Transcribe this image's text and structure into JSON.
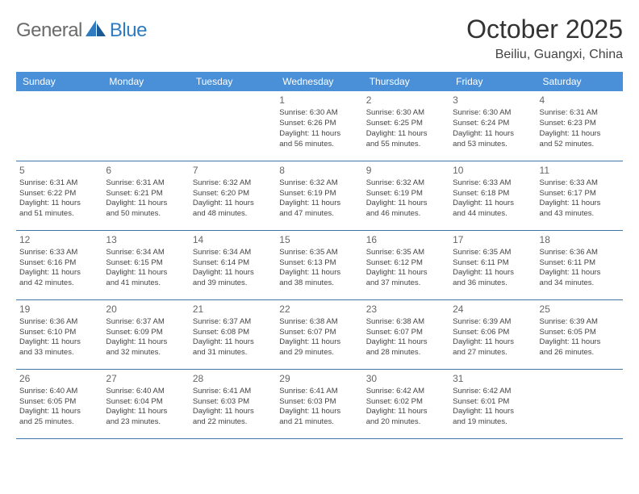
{
  "logo": {
    "word1": "General",
    "word2": "Blue"
  },
  "title": "October 2025",
  "location": "Beiliu, Guangxi, China",
  "colors": {
    "header_bg": "#4a90d9",
    "header_text": "#ffffff",
    "border": "#3f76a8",
    "logo_gray": "#6b6b6b",
    "logo_blue": "#2f7bbf"
  },
  "fonts": {
    "title_size": 32,
    "location_size": 16,
    "th_size": 12,
    "cell_size": 9.5,
    "daynum_size": 12
  },
  "dayHeaders": [
    "Sunday",
    "Monday",
    "Tuesday",
    "Wednesday",
    "Thursday",
    "Friday",
    "Saturday"
  ],
  "weeks": [
    [
      null,
      null,
      null,
      {
        "n": "1",
        "sr": "Sunrise: 6:30 AM",
        "ss": "Sunset: 6:26 PM",
        "d1": "Daylight: 11 hours",
        "d2": "and 56 minutes."
      },
      {
        "n": "2",
        "sr": "Sunrise: 6:30 AM",
        "ss": "Sunset: 6:25 PM",
        "d1": "Daylight: 11 hours",
        "d2": "and 55 minutes."
      },
      {
        "n": "3",
        "sr": "Sunrise: 6:30 AM",
        "ss": "Sunset: 6:24 PM",
        "d1": "Daylight: 11 hours",
        "d2": "and 53 minutes."
      },
      {
        "n": "4",
        "sr": "Sunrise: 6:31 AM",
        "ss": "Sunset: 6:23 PM",
        "d1": "Daylight: 11 hours",
        "d2": "and 52 minutes."
      }
    ],
    [
      {
        "n": "5",
        "sr": "Sunrise: 6:31 AM",
        "ss": "Sunset: 6:22 PM",
        "d1": "Daylight: 11 hours",
        "d2": "and 51 minutes."
      },
      {
        "n": "6",
        "sr": "Sunrise: 6:31 AM",
        "ss": "Sunset: 6:21 PM",
        "d1": "Daylight: 11 hours",
        "d2": "and 50 minutes."
      },
      {
        "n": "7",
        "sr": "Sunrise: 6:32 AM",
        "ss": "Sunset: 6:20 PM",
        "d1": "Daylight: 11 hours",
        "d2": "and 48 minutes."
      },
      {
        "n": "8",
        "sr": "Sunrise: 6:32 AM",
        "ss": "Sunset: 6:19 PM",
        "d1": "Daylight: 11 hours",
        "d2": "and 47 minutes."
      },
      {
        "n": "9",
        "sr": "Sunrise: 6:32 AM",
        "ss": "Sunset: 6:19 PM",
        "d1": "Daylight: 11 hours",
        "d2": "and 46 minutes."
      },
      {
        "n": "10",
        "sr": "Sunrise: 6:33 AM",
        "ss": "Sunset: 6:18 PM",
        "d1": "Daylight: 11 hours",
        "d2": "and 44 minutes."
      },
      {
        "n": "11",
        "sr": "Sunrise: 6:33 AM",
        "ss": "Sunset: 6:17 PM",
        "d1": "Daylight: 11 hours",
        "d2": "and 43 minutes."
      }
    ],
    [
      {
        "n": "12",
        "sr": "Sunrise: 6:33 AM",
        "ss": "Sunset: 6:16 PM",
        "d1": "Daylight: 11 hours",
        "d2": "and 42 minutes."
      },
      {
        "n": "13",
        "sr": "Sunrise: 6:34 AM",
        "ss": "Sunset: 6:15 PM",
        "d1": "Daylight: 11 hours",
        "d2": "and 41 minutes."
      },
      {
        "n": "14",
        "sr": "Sunrise: 6:34 AM",
        "ss": "Sunset: 6:14 PM",
        "d1": "Daylight: 11 hours",
        "d2": "and 39 minutes."
      },
      {
        "n": "15",
        "sr": "Sunrise: 6:35 AM",
        "ss": "Sunset: 6:13 PM",
        "d1": "Daylight: 11 hours",
        "d2": "and 38 minutes."
      },
      {
        "n": "16",
        "sr": "Sunrise: 6:35 AM",
        "ss": "Sunset: 6:12 PM",
        "d1": "Daylight: 11 hours",
        "d2": "and 37 minutes."
      },
      {
        "n": "17",
        "sr": "Sunrise: 6:35 AM",
        "ss": "Sunset: 6:11 PM",
        "d1": "Daylight: 11 hours",
        "d2": "and 36 minutes."
      },
      {
        "n": "18",
        "sr": "Sunrise: 6:36 AM",
        "ss": "Sunset: 6:11 PM",
        "d1": "Daylight: 11 hours",
        "d2": "and 34 minutes."
      }
    ],
    [
      {
        "n": "19",
        "sr": "Sunrise: 6:36 AM",
        "ss": "Sunset: 6:10 PM",
        "d1": "Daylight: 11 hours",
        "d2": "and 33 minutes."
      },
      {
        "n": "20",
        "sr": "Sunrise: 6:37 AM",
        "ss": "Sunset: 6:09 PM",
        "d1": "Daylight: 11 hours",
        "d2": "and 32 minutes."
      },
      {
        "n": "21",
        "sr": "Sunrise: 6:37 AM",
        "ss": "Sunset: 6:08 PM",
        "d1": "Daylight: 11 hours",
        "d2": "and 31 minutes."
      },
      {
        "n": "22",
        "sr": "Sunrise: 6:38 AM",
        "ss": "Sunset: 6:07 PM",
        "d1": "Daylight: 11 hours",
        "d2": "and 29 minutes."
      },
      {
        "n": "23",
        "sr": "Sunrise: 6:38 AM",
        "ss": "Sunset: 6:07 PM",
        "d1": "Daylight: 11 hours",
        "d2": "and 28 minutes."
      },
      {
        "n": "24",
        "sr": "Sunrise: 6:39 AM",
        "ss": "Sunset: 6:06 PM",
        "d1": "Daylight: 11 hours",
        "d2": "and 27 minutes."
      },
      {
        "n": "25",
        "sr": "Sunrise: 6:39 AM",
        "ss": "Sunset: 6:05 PM",
        "d1": "Daylight: 11 hours",
        "d2": "and 26 minutes."
      }
    ],
    [
      {
        "n": "26",
        "sr": "Sunrise: 6:40 AM",
        "ss": "Sunset: 6:05 PM",
        "d1": "Daylight: 11 hours",
        "d2": "and 25 minutes."
      },
      {
        "n": "27",
        "sr": "Sunrise: 6:40 AM",
        "ss": "Sunset: 6:04 PM",
        "d1": "Daylight: 11 hours",
        "d2": "and 23 minutes."
      },
      {
        "n": "28",
        "sr": "Sunrise: 6:41 AM",
        "ss": "Sunset: 6:03 PM",
        "d1": "Daylight: 11 hours",
        "d2": "and 22 minutes."
      },
      {
        "n": "29",
        "sr": "Sunrise: 6:41 AM",
        "ss": "Sunset: 6:03 PM",
        "d1": "Daylight: 11 hours",
        "d2": "and 21 minutes."
      },
      {
        "n": "30",
        "sr": "Sunrise: 6:42 AM",
        "ss": "Sunset: 6:02 PM",
        "d1": "Daylight: 11 hours",
        "d2": "and 20 minutes."
      },
      {
        "n": "31",
        "sr": "Sunrise: 6:42 AM",
        "ss": "Sunset: 6:01 PM",
        "d1": "Daylight: 11 hours",
        "d2": "and 19 minutes."
      },
      null
    ]
  ]
}
